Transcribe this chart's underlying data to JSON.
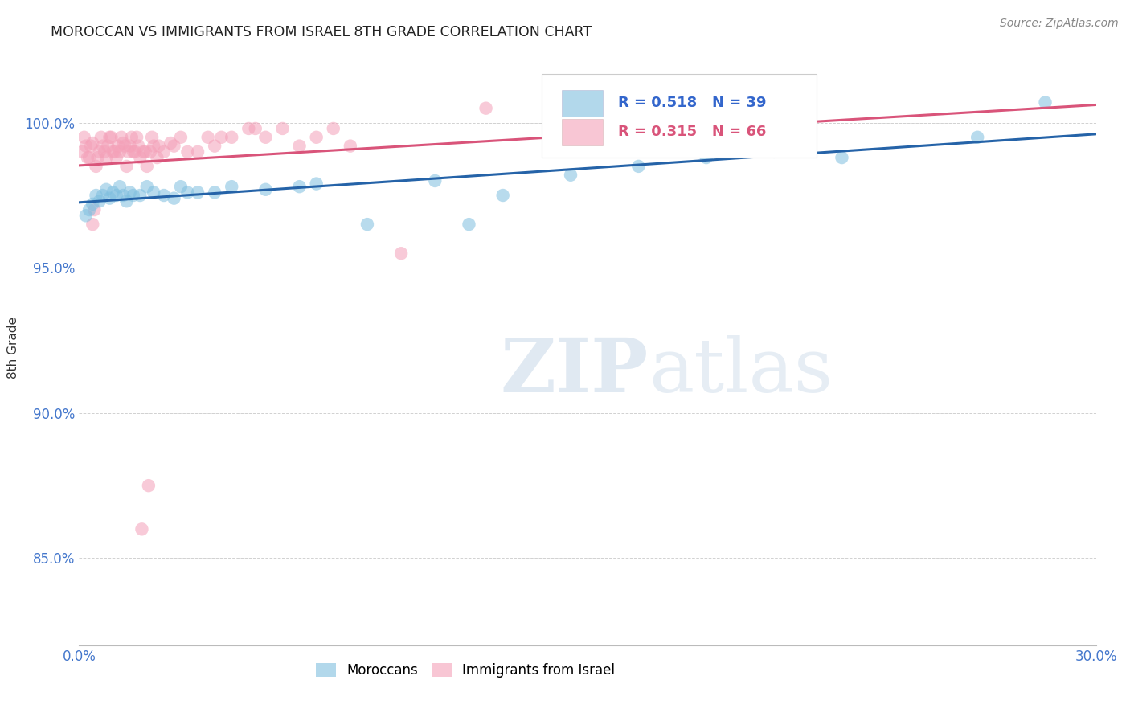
{
  "title": "MOROCCAN VS IMMIGRANTS FROM ISRAEL 8TH GRADE CORRELATION CHART",
  "source": "Source: ZipAtlas.com",
  "ylabel": "8th Grade",
  "y_ticks": [
    85.0,
    90.0,
    95.0,
    100.0
  ],
  "y_tick_labels": [
    "85.0%",
    "90.0%",
    "95.0%",
    "100.0%"
  ],
  "xlim": [
    0.0,
    30.0
  ],
  "ylim": [
    82.0,
    102.5
  ],
  "watermark_zip": "ZIP",
  "watermark_atlas": "atlas",
  "legend_blue_R": "R = 0.518",
  "legend_blue_N": "N = 39",
  "legend_pink_R": "R = 0.315",
  "legend_pink_N": "N = 66",
  "blue_color": "#7fbfdf",
  "pink_color": "#f4a0b8",
  "blue_line_color": "#2563a8",
  "pink_line_color": "#d9547a",
  "blue_label": "Moroccans",
  "pink_label": "Immigrants from Israel",
  "blue_x": [
    0.2,
    0.3,
    0.4,
    0.5,
    0.6,
    0.7,
    0.8,
    0.9,
    1.0,
    1.1,
    1.2,
    1.3,
    1.4,
    1.5,
    1.6,
    1.8,
    2.0,
    2.2,
    2.5,
    2.8,
    3.0,
    3.2,
    3.5,
    4.0,
    4.5,
    5.5,
    6.5,
    7.0,
    8.5,
    10.5,
    11.5,
    12.5,
    14.5,
    16.5,
    18.5,
    20.5,
    22.5,
    26.5,
    28.5
  ],
  "blue_y": [
    96.8,
    97.0,
    97.2,
    97.5,
    97.3,
    97.5,
    97.7,
    97.4,
    97.6,
    97.5,
    97.8,
    97.5,
    97.3,
    97.6,
    97.5,
    97.5,
    97.8,
    97.6,
    97.5,
    97.4,
    97.8,
    97.6,
    97.6,
    97.6,
    97.8,
    97.7,
    97.8,
    97.9,
    96.5,
    98.0,
    96.5,
    97.5,
    98.2,
    98.5,
    98.8,
    99.0,
    98.8,
    99.5,
    100.7
  ],
  "pink_x": [
    0.1,
    0.2,
    0.3,
    0.4,
    0.5,
    0.6,
    0.7,
    0.8,
    0.9,
    1.0,
    1.1,
    1.2,
    1.3,
    1.4,
    1.5,
    1.6,
    1.7,
    1.8,
    1.9,
    2.0,
    2.1,
    2.2,
    2.3,
    2.5,
    2.7,
    3.0,
    3.5,
    4.0,
    4.5,
    5.0,
    5.5,
    6.0,
    6.5,
    7.0,
    7.5,
    8.0,
    9.5,
    12.0,
    0.15,
    0.25,
    0.35,
    0.55,
    0.65,
    0.75,
    0.85,
    0.95,
    1.05,
    1.15,
    1.25,
    1.45,
    1.55,
    1.75,
    1.95,
    2.15,
    2.35,
    3.2,
    4.2,
    5.2,
    2.8,
    3.8,
    0.45,
    0.4,
    1.35,
    1.65,
    2.05,
    1.85
  ],
  "pink_y": [
    99.0,
    99.2,
    98.8,
    99.3,
    98.5,
    99.0,
    99.2,
    98.8,
    99.5,
    99.0,
    98.8,
    99.0,
    99.3,
    98.5,
    99.2,
    99.0,
    99.5,
    98.8,
    99.0,
    98.5,
    99.0,
    99.2,
    98.8,
    99.0,
    99.3,
    99.5,
    99.0,
    99.2,
    99.5,
    99.8,
    99.5,
    99.8,
    99.2,
    99.5,
    99.8,
    99.2,
    95.5,
    100.5,
    99.5,
    98.8,
    99.2,
    98.8,
    99.5,
    99.0,
    99.2,
    99.5,
    99.0,
    99.2,
    99.5,
    99.0,
    99.5,
    99.2,
    99.0,
    99.5,
    99.2,
    99.0,
    99.5,
    99.8,
    99.2,
    99.5,
    97.0,
    96.5,
    99.2,
    99.0,
    87.5,
    86.0
  ]
}
